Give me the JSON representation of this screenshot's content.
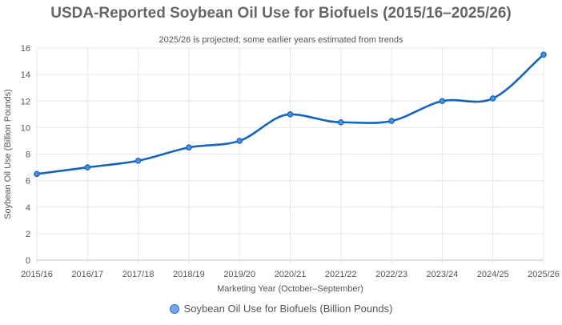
{
  "chart_data": {
    "type": "line",
    "title": "USDA-Reported Soybean Oil Use for Biofuels (2015/16–2025/26)",
    "subtitle": "2025/26 is projected; some earlier years estimated from trends",
    "xlabel": "Marketing Year (October–September)",
    "ylabel": "Soybean Oil Use (Billion Pounds)",
    "categories": [
      "2015/16",
      "2016/17",
      "2017/18",
      "2018/19",
      "2019/20",
      "2020/21",
      "2021/22",
      "2022/23",
      "2023/24",
      "2024/25",
      "2025/26"
    ],
    "series": [
      {
        "name": "Soybean Oil Use for Biofuels (Billion Pounds)",
        "values": [
          6.5,
          7.0,
          7.5,
          8.5,
          9.0,
          11.0,
          10.4,
          10.5,
          12.0,
          12.2,
          15.5
        ]
      }
    ],
    "ylim": [
      0,
      16
    ],
    "yticks": [
      "0",
      "2",
      "4",
      "6",
      "8",
      "10",
      "12",
      "14",
      "16"
    ],
    "grid": true,
    "legend_position": "bottom",
    "line_color": "#1565c0",
    "marker_fill": "#4a90d9"
  }
}
